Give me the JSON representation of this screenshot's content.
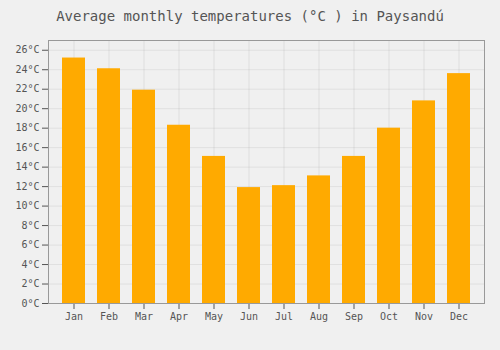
{
  "chart_data": {
    "type": "bar",
    "title": "Average monthly temperatures (°C ) in Paysandú",
    "categories": [
      "Jan",
      "Feb",
      "Mar",
      "Apr",
      "May",
      "Jun",
      "Jul",
      "Aug",
      "Sep",
      "Oct",
      "Nov",
      "Dec"
    ],
    "values": [
      25.2,
      24.1,
      21.9,
      18.3,
      15.1,
      11.9,
      12.1,
      13.1,
      15.1,
      18.0,
      20.8,
      23.6
    ],
    "color": "#FFAA00",
    "ylim": [
      0,
      27
    ],
    "yticks": [
      {
        "value": 0,
        "label": "0°C"
      },
      {
        "value": 2,
        "label": "2°C"
      },
      {
        "value": 4,
        "label": "4°C"
      },
      {
        "value": 6,
        "label": "6°C"
      },
      {
        "value": 8,
        "label": "8°C"
      },
      {
        "value": 10,
        "label": "10°C"
      },
      {
        "value": 12,
        "label": "12°C"
      },
      {
        "value": 14,
        "label": "14°C"
      },
      {
        "value": 16,
        "label": "16°C"
      },
      {
        "value": 18,
        "label": "18°C"
      },
      {
        "value": 20,
        "label": "20°C"
      },
      {
        "value": 22,
        "label": "22°C"
      },
      {
        "value": 24,
        "label": "24°C"
      },
      {
        "value": 26,
        "label": "26°C"
      }
    ],
    "grid": true
  }
}
